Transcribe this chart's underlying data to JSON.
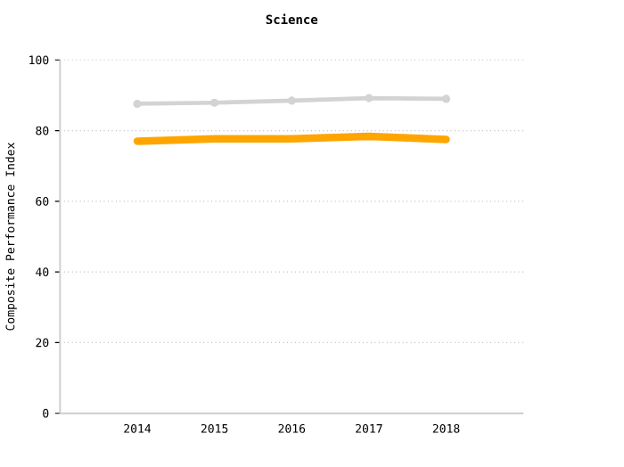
{
  "chart_data": {
    "type": "line",
    "title": "Science",
    "ylabel": "Composite Performance Index",
    "categories": [
      "2014",
      "2015",
      "2016",
      "2017",
      "2018"
    ],
    "series": [
      {
        "color": "#d3d3d3",
        "values": [
          87.6,
          87.9,
          88.5,
          89.2,
          89.0
        ],
        "marker": "circle"
      },
      {
        "color": "#ffa500",
        "values": [
          77.0,
          77.7,
          77.7,
          78.4,
          77.5
        ]
      }
    ],
    "ylim": [
      0,
      100
    ],
    "yticks": [
      0,
      20,
      40,
      60,
      80,
      100
    ],
    "grid": "y"
  }
}
